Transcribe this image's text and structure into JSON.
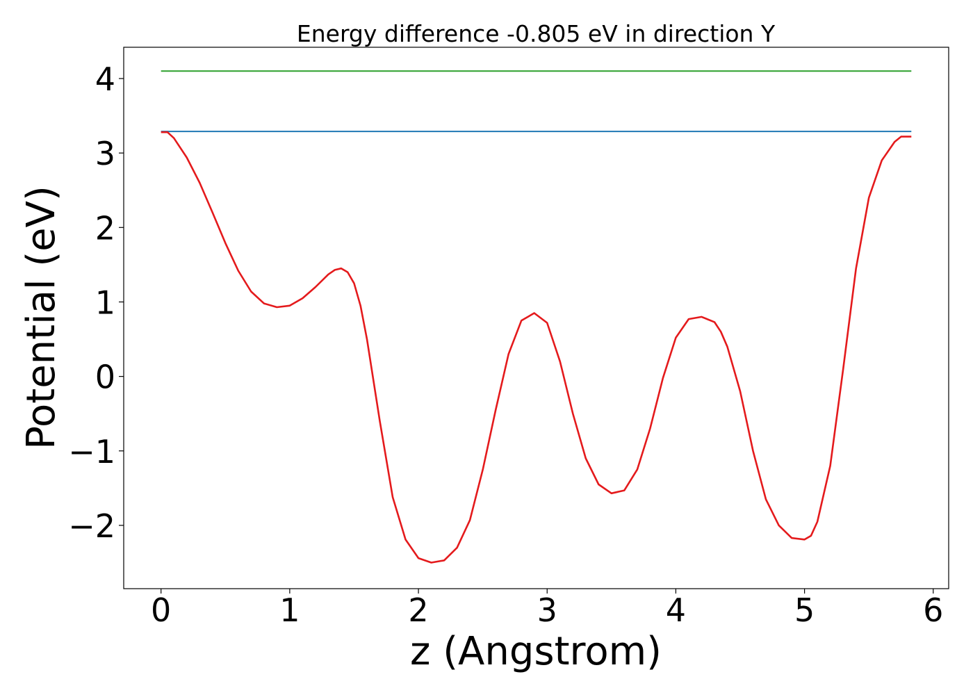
{
  "chart_data": {
    "type": "line",
    "title": "Energy difference -0.805 eV in direction Y",
    "xlabel": "z (Angstrom)",
    "ylabel": "Potential (eV)",
    "xlim": [
      -0.29,
      6.12
    ],
    "ylim": [
      -2.85,
      4.42
    ],
    "x_ticks": [
      0,
      1,
      2,
      3,
      4,
      5,
      6
    ],
    "x_tick_labels": [
      "0",
      "1",
      "2",
      "3",
      "4",
      "5",
      "6"
    ],
    "y_ticks": [
      -2,
      -1,
      0,
      1,
      2,
      3,
      4
    ],
    "y_tick_labels": [
      "−2",
      "−1",
      "0",
      "1",
      "2",
      "3",
      "4"
    ],
    "grid": false,
    "legend": "none",
    "series": [
      {
        "color": "#2ca02c",
        "x": [
          0.0,
          5.83
        ],
        "y": [
          4.1,
          4.1
        ]
      },
      {
        "color": "#1f77b4",
        "x": [
          0.0,
          5.83
        ],
        "y": [
          3.29,
          3.29
        ]
      },
      {
        "color": "#e41a1c",
        "x": [
          0.0,
          0.05,
          0.1,
          0.2,
          0.3,
          0.4,
          0.5,
          0.6,
          0.7,
          0.8,
          0.9,
          1.0,
          1.1,
          1.2,
          1.3,
          1.35,
          1.4,
          1.45,
          1.5,
          1.55,
          1.6,
          1.7,
          1.8,
          1.9,
          2.0,
          2.1,
          2.2,
          2.3,
          2.4,
          2.5,
          2.6,
          2.7,
          2.8,
          2.9,
          3.0,
          3.1,
          3.2,
          3.3,
          3.4,
          3.5,
          3.6,
          3.7,
          3.8,
          3.9,
          4.0,
          4.1,
          4.2,
          4.3,
          4.35,
          4.4,
          4.5,
          4.6,
          4.7,
          4.8,
          4.9,
          5.0,
          5.05,
          5.1,
          5.2,
          5.3,
          5.4,
          5.5,
          5.6,
          5.7,
          5.75,
          5.8,
          5.83
        ],
        "y": [
          3.28,
          3.28,
          3.2,
          2.94,
          2.6,
          2.2,
          1.79,
          1.42,
          1.14,
          0.98,
          0.93,
          0.95,
          1.05,
          1.2,
          1.37,
          1.43,
          1.45,
          1.4,
          1.25,
          0.95,
          0.5,
          -0.6,
          -1.62,
          -2.19,
          -2.44,
          -2.5,
          -2.47,
          -2.3,
          -1.93,
          -1.25,
          -0.45,
          0.3,
          0.75,
          0.85,
          0.72,
          0.2,
          -0.5,
          -1.1,
          -1.45,
          -1.57,
          -1.53,
          -1.25,
          -0.7,
          -0.02,
          0.52,
          0.77,
          0.8,
          0.73,
          0.6,
          0.4,
          -0.2,
          -1.0,
          -1.65,
          -2.0,
          -2.17,
          -2.19,
          -2.14,
          -1.95,
          -1.2,
          0.1,
          1.45,
          2.4,
          2.9,
          3.15,
          3.22,
          3.22,
          3.22
        ]
      }
    ]
  }
}
